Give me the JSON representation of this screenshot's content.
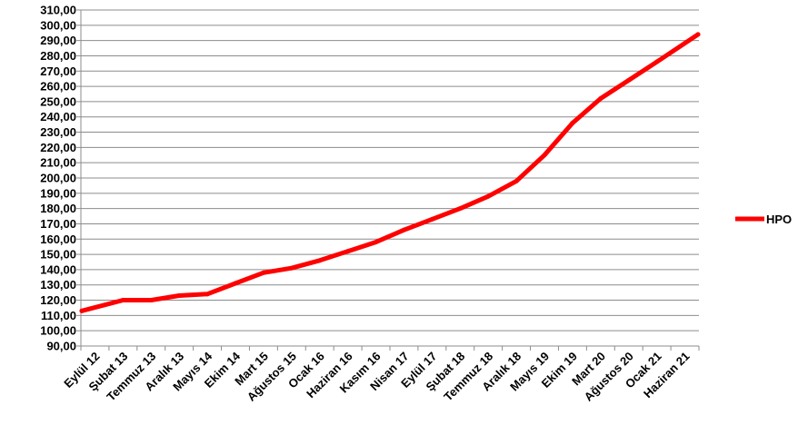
{
  "chart_data": {
    "type": "line",
    "title": "",
    "xlabel": "",
    "ylabel": "",
    "ylim": [
      90,
      310
    ],
    "y_tick_step": 10,
    "y_tick_labels": [
      "90,00",
      "100,00",
      "110,00",
      "120,00",
      "130,00",
      "140,00",
      "150,00",
      "160,00",
      "170,00",
      "180,00",
      "190,00",
      "200,00",
      "210,00",
      "220,00",
      "230,00",
      "240,00",
      "250,00",
      "260,00",
      "270,00",
      "280,00",
      "290,00",
      "300,00",
      "310,00"
    ],
    "x_tick_labels": [
      "Eylül 12",
      "Şubat 13",
      "Temmuz 13",
      "Aralık 13",
      "Mayıs 14",
      "Ekim 14",
      "Mart 15",
      "Ağustos 15",
      "Ocak 16",
      "Haziran 16",
      "Kasım 16",
      "Nisan 17",
      "Eylül 17",
      "Şubat 18",
      "Temmuz 18",
      "Aralık 18",
      "Mayıs 19",
      "Ekim 19",
      "Mart 20",
      "Ağustos 20",
      "Ocak 21",
      "Haziran 21"
    ],
    "grid": true,
    "legend_position": "right",
    "series": [
      {
        "name": "HPO",
        "color": "#ff0000",
        "x": [
          "Eylül 12",
          "Şubat 13",
          "Temmuz 13",
          "Aralık 13",
          "Mayıs 14",
          "Ekim 14",
          "Mart 15",
          "Ağustos 15",
          "Ocak 16",
          "Haziran 16",
          "Kasım 16",
          "Nisan 17",
          "Eylül 17",
          "Şubat 18",
          "Temmuz 18",
          "Aralık 18",
          "Mayıs 19",
          "Ekim 19",
          "Mart 20",
          "Ağustos 20",
          "Ocak 21",
          "Haziran 21"
        ],
        "values": [
          113,
          120,
          120,
          123,
          124,
          131,
          138,
          141,
          146,
          152,
          158,
          166,
          173,
          180,
          188,
          198,
          215,
          236,
          252,
          264,
          276,
          294
        ]
      }
    ]
  }
}
